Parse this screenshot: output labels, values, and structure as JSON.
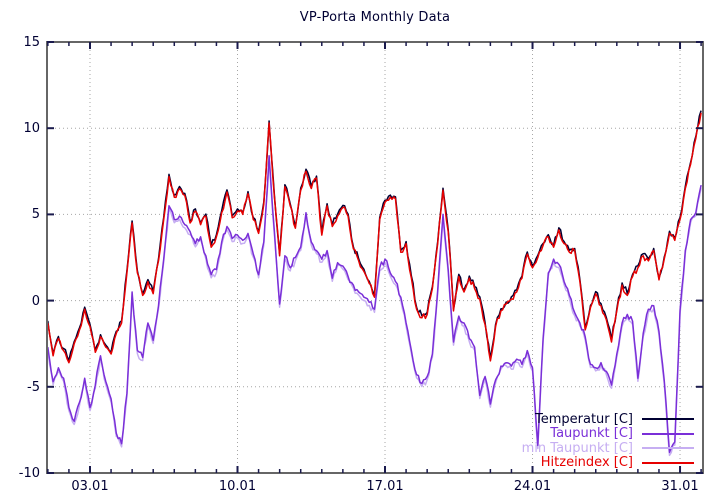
{
  "title": "VP-Porta Monthly Data",
  "colors": {
    "background": "#ffffff",
    "border": "#666666",
    "grid": "#a6a6a6",
    "tick": "#1a1a4d",
    "text": "#000033"
  },
  "chart_data": {
    "type": "line",
    "title": "VP-Porta Monthly Data",
    "xlabel": "",
    "ylabel": "",
    "x_unit": "date (day.month, January)",
    "y_unit": "degrees C",
    "xlim": [
      0.96,
      32.09
    ],
    "ylim": [
      -10,
      15
    ],
    "grid": "dotted lines at major ticks",
    "legend_position": "inside bottom-right",
    "x_ticks_major": {
      "values": [
        3,
        10,
        17,
        24,
        31
      ],
      "labels": [
        "03.01",
        "10.01",
        "17.01",
        "24.01",
        "31.01"
      ]
    },
    "x_minor_tick_step": 1,
    "y_ticks_major": {
      "values": [
        -10,
        -5,
        0,
        5,
        10,
        15
      ],
      "labels": [
        "-10",
        "-5",
        "0",
        "5",
        "10",
        "15"
      ]
    },
    "sampling": {
      "start_day": 1.0,
      "step_days": 0.25
    },
    "render_noise": {
      "amplitude": 0.18,
      "substeps": 3
    },
    "draw_order": [
      "temperatur",
      "min_taupunkt",
      "taupunkt",
      "hitzeindex"
    ],
    "series": [
      {
        "id": "temperatur",
        "name": "Temperatur [C]",
        "color": "#000033",
        "same_as": "hitzeindex",
        "offset": 0.12,
        "seed": 11,
        "note": "coincides with Hitzeindex, almost fully hidden beneath the red line"
      },
      {
        "id": "taupunkt",
        "name": "Taupunkt [C]",
        "color": "#7a2fd8",
        "seed": 23,
        "values": [
          -2.7,
          -4.7,
          -3.9,
          -4.5,
          -6.2,
          -7.0,
          -5.9,
          -4.5,
          -6.2,
          -4.9,
          -3.2,
          -4.7,
          -5.7,
          -7.7,
          -8.3,
          -5.4,
          0.5,
          -2.9,
          -3.3,
          -1.3,
          -2.3,
          -0.3,
          2.4,
          5.5,
          4.7,
          4.9,
          4.4,
          4.0,
          3.3,
          3.7,
          2.6,
          1.5,
          1.8,
          3.4,
          4.3,
          3.6,
          3.8,
          3.5,
          3.9,
          2.7,
          1.5,
          3.4,
          8.4,
          4.0,
          -0.2,
          2.6,
          1.9,
          2.5,
          3.1,
          5.1,
          3.4,
          2.9,
          2.4,
          2.9,
          1.3,
          2.2,
          2.0,
          1.4,
          0.9,
          0.5,
          0.2,
          -0.1,
          -0.5,
          1.9,
          2.4,
          1.6,
          1.1,
          0.2,
          -1.3,
          -2.9,
          -4.3,
          -4.8,
          -4.4,
          -3.1,
          0.6,
          5.0,
          1.8,
          -2.4,
          -0.9,
          -1.3,
          -2.2,
          -2.7,
          -5.5,
          -4.4,
          -6.0,
          -4.6,
          -3.8,
          -3.6,
          -3.8,
          -3.4,
          -3.7,
          -2.9,
          -3.9,
          -8.4,
          -2.2,
          1.6,
          2.4,
          2.1,
          1.1,
          0.3,
          -0.7,
          -1.3,
          -2.1,
          -3.7,
          -3.9,
          -3.6,
          -4.1,
          -4.9,
          -3.1,
          -1.3,
          -0.8,
          -1.2,
          -4.5,
          -1.9,
          -0.5,
          -0.3,
          -1.8,
          -4.6,
          -8.8,
          -8.2,
          -0.6,
          2.9,
          4.7,
          5.1,
          6.7
        ]
      },
      {
        "id": "min_taupunkt",
        "name": "min Taupunkt [C]",
        "color": "#c6aef2",
        "same_as": "taupunkt",
        "offset": -0.18,
        "seed": 37,
        "note": "closely shadows Taupunkt, visible as light fringe below it"
      },
      {
        "id": "hitzeindex",
        "name": "Hitzeindex [C]",
        "color": "#e60000",
        "seed": 5,
        "values": [
          -1.3,
          -3.2,
          -2.2,
          -2.9,
          -3.6,
          -2.5,
          -1.7,
          -0.5,
          -1.5,
          -3.0,
          -2.1,
          -2.7,
          -3.1,
          -1.9,
          -1.3,
          1.6,
          4.5,
          1.6,
          0.3,
          1.1,
          0.4,
          2.3,
          4.7,
          7.2,
          6.0,
          6.5,
          6.1,
          4.5,
          5.2,
          4.4,
          4.9,
          3.1,
          3.7,
          5.1,
          6.3,
          4.8,
          5.2,
          5.0,
          6.2,
          4.7,
          3.9,
          5.6,
          10.3,
          6.0,
          2.6,
          6.6,
          5.5,
          4.2,
          6.4,
          7.5,
          6.5,
          7.1,
          3.8,
          5.5,
          4.3,
          4.9,
          5.4,
          4.9,
          3.0,
          2.3,
          1.7,
          1.0,
          0.2,
          4.7,
          5.7,
          6.0,
          5.9,
          2.8,
          3.3,
          1.3,
          -0.5,
          -1.0,
          -0.8,
          0.7,
          3.3,
          6.4,
          4.0,
          -0.6,
          1.4,
          0.5,
          1.3,
          0.7,
          0.1,
          -1.4,
          -3.5,
          -1.5,
          -0.6,
          -0.2,
          0.1,
          0.5,
          1.3,
          2.7,
          1.9,
          2.5,
          3.2,
          3.7,
          3.1,
          4.1,
          3.3,
          2.8,
          2.9,
          1.1,
          -1.7,
          -0.4,
          0.4,
          -0.3,
          -1.1,
          -2.4,
          -0.6,
          0.9,
          0.3,
          1.4,
          1.9,
          2.6,
          2.3,
          2.9,
          1.2,
          2.4,
          3.9,
          3.5,
          4.7,
          6.5,
          7.9,
          9.4,
          10.9
        ]
      }
    ]
  },
  "legend": {
    "entries": [
      "Temperatur [C]",
      "Taupunkt [C]",
      "min Taupunkt [C]",
      "Hitzeindex [C]"
    ]
  }
}
